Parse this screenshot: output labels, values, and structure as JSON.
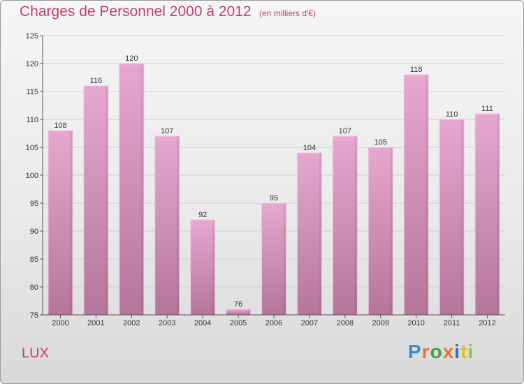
{
  "title": "Charges de Personnel 2000 à 2012",
  "subtitle": "(en milliers d'€)",
  "location": "LUX",
  "logo_text": "Proxiti",
  "colors": {
    "title": "#c43d6f",
    "bar_top": "#e6a8cf",
    "bar_bottom": "#b5769a",
    "axis": "#555555",
    "grid": "#cfcfcf"
  },
  "chart_data": {
    "type": "bar",
    "title": "Charges de Personnel 2000 à 2012",
    "unit": "(en milliers d'€)",
    "categories": [
      "2000",
      "2001",
      "2002",
      "2003",
      "2004",
      "2005",
      "2006",
      "2007",
      "2008",
      "2009",
      "2010",
      "2011",
      "2012"
    ],
    "values": [
      108,
      116,
      120,
      107,
      92,
      76,
      95,
      104,
      107,
      105,
      118,
      110,
      111
    ],
    "ylim": [
      75,
      125
    ],
    "yticks": [
      75,
      80,
      85,
      90,
      95,
      100,
      105,
      110,
      115,
      120,
      125
    ],
    "grid": true,
    "data_labels": true
  }
}
